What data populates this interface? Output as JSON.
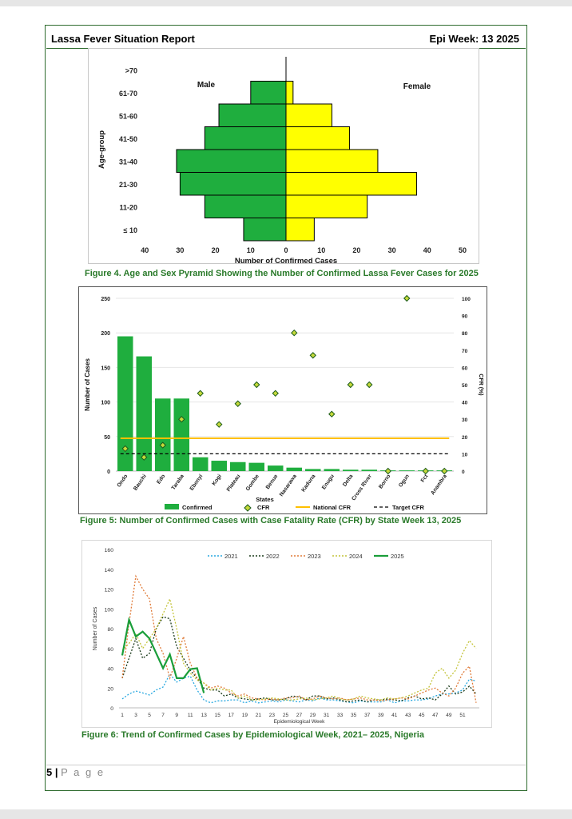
{
  "header": {
    "left": "Lassa Fever Situation Report",
    "right": "Epi Week: 13 2025"
  },
  "figure4": {
    "caption": "Figure 4. Age and Sex Pyramid Showing the Number of Confirmed Lassa Fever Cases for 2025",
    "chart_data": {
      "type": "bar",
      "orientation": "horizontal-pyramid",
      "ylabel": "Age-group",
      "xlabel": "Number of Confirmed Cases",
      "categories": [
        "≤ 10",
        "11-20",
        "21-30",
        "31-40",
        "41-50",
        "51-60",
        "61-70",
        ">70"
      ],
      "series": [
        {
          "name": "Male",
          "values": [
            12,
            23,
            30,
            31,
            23,
            19,
            10,
            0
          ]
        },
        {
          "name": "Female",
          "values": [
            8,
            23,
            37,
            26,
            18,
            13,
            2,
            0
          ]
        }
      ],
      "xticks": [
        "40",
        "30",
        "20",
        "10",
        "0",
        "10",
        "20",
        "30",
        "40",
        "50"
      ],
      "colors": {
        "male": "#1fae3e",
        "female": "#ffff00"
      }
    }
  },
  "figure5": {
    "caption": "Figure 5: Number of Confirmed Cases with Case Fatality Rate (CFR) by State Week 13, 2025",
    "chart_data": {
      "type": "bar",
      "categories": [
        "Ondo",
        "Bauchi",
        "Edo",
        "Taraba",
        "Ebonyi",
        "Kogi",
        "Plateau",
        "Gombe",
        "Benue",
        "Nasarawa",
        "Kaduna",
        "Enugu",
        "Delta",
        "Cross River",
        "Borno",
        "Ogun",
        "Fct",
        "Anambra"
      ],
      "series": [
        {
          "name": "Confirmed",
          "values": [
            195,
            166,
            105,
            105,
            20,
            15,
            13,
            12,
            8,
            5,
            3,
            3,
            2,
            2,
            1,
            1,
            1,
            1
          ]
        },
        {
          "name": "CFR",
          "values": [
            13,
            8,
            15,
            30,
            45,
            27,
            39,
            50,
            45,
            80,
            67,
            33,
            50,
            50,
            0,
            100,
            0,
            0
          ]
        }
      ],
      "national_cfr": 19,
      "target_cfr": 10,
      "ylabel": "Number of Cases",
      "y2label": "CFR (%)",
      "xlabel": "States",
      "ylim": [
        0,
        250
      ],
      "y2lim": [
        0,
        100
      ],
      "yticks": [
        "0",
        "50",
        "100",
        "150",
        "200",
        "250"
      ],
      "y2ticks": [
        "0",
        "10",
        "20",
        "30",
        "40",
        "50",
        "60",
        "70",
        "80",
        "90",
        "100"
      ],
      "legend": [
        "Confirmed",
        "CFR",
        "National CFR",
        "Target CFR"
      ],
      "colors": {
        "bar": "#1fae3e",
        "national": "#ffc000",
        "target": "#000000"
      }
    }
  },
  "figure6": {
    "caption": "Figure 6: Trend of Confirmed Cases by Epidemiological Week, 2021– 2025, Nigeria",
    "chart_data": {
      "type": "line",
      "ylabel": "Number of Cases",
      "xlabel": "Epidemiological Week",
      "ylim": [
        0,
        160
      ],
      "yticks": [
        "0",
        "20",
        "40",
        "60",
        "80",
        "100",
        "120",
        "140",
        "160"
      ],
      "xticks": [
        "1",
        "3",
        "5",
        "7",
        "9",
        "11",
        "13",
        "15",
        "17",
        "19",
        "21",
        "23",
        "25",
        "27",
        "29",
        "31",
        "33",
        "35",
        "37",
        "39",
        "41",
        "43",
        "45",
        "47",
        "49",
        "51"
      ],
      "series": [
        {
          "name": "2021",
          "color": "#29a8e0",
          "dash": "2,2",
          "values": [
            9,
            14,
            17,
            15,
            13,
            18,
            21,
            34,
            26,
            30,
            32,
            18,
            8,
            5,
            7,
            7,
            8,
            8,
            5,
            7,
            5,
            6,
            7,
            6,
            8,
            7,
            6,
            8,
            7,
            10,
            8,
            8,
            7,
            6,
            5,
            7,
            6,
            6,
            6,
            8,
            5,
            7,
            7,
            8,
            8,
            9,
            12,
            14,
            14,
            15,
            18,
            29,
            27
          ]
        },
        {
          "name": "2022",
          "color": "#1a3a1a",
          "dash": "2,2",
          "values": [
            30,
            50,
            70,
            50,
            55,
            80,
            92,
            90,
            62,
            50,
            38,
            30,
            20,
            18,
            18,
            12,
            14,
            10,
            9,
            8,
            9,
            10,
            8,
            8,
            9,
            12,
            11,
            8,
            12,
            12,
            9,
            10,
            8,
            6,
            7,
            8,
            6,
            8,
            8,
            9,
            8,
            7,
            10,
            12,
            9,
            10,
            8,
            14,
            22,
            14,
            16,
            22,
            14
          ]
        },
        {
          "name": "2023",
          "color": "#e07b39",
          "dash": "2,2",
          "values": [
            30,
            85,
            133,
            120,
            110,
            70,
            55,
            30,
            50,
            72,
            45,
            30,
            25,
            20,
            22,
            20,
            15,
            12,
            14,
            10,
            9,
            8,
            9,
            8,
            10,
            10,
            12,
            8,
            9,
            12,
            10,
            9,
            10,
            8,
            9,
            10,
            8,
            8,
            7,
            8,
            9,
            10,
            9,
            12,
            15,
            18,
            20,
            15,
            12,
            20,
            35,
            42,
            5
          ]
        },
        {
          "name": "2024",
          "color": "#c4c43a",
          "dash": "2,2",
          "values": [
            58,
            65,
            75,
            60,
            70,
            80,
            95,
            110,
            80,
            45,
            35,
            28,
            25,
            18,
            20,
            18,
            18,
            10,
            12,
            8,
            8,
            9,
            10,
            9,
            8,
            8,
            9,
            10,
            8,
            9,
            10,
            12,
            9,
            8,
            9,
            12,
            10,
            9,
            8,
            10,
            9,
            10,
            12,
            15,
            18,
            20,
            35,
            40,
            30,
            38,
            55,
            68,
            60
          ]
        },
        {
          "name": "2025",
          "color": "#1a9e3a",
          "dash": "",
          "values": [
            53,
            89,
            72,
            77,
            70,
            55,
            40,
            54,
            30,
            30,
            39,
            40,
            15
          ]
        }
      ]
    }
  },
  "footer": {
    "page_num": "5",
    "page_label": "P a g e"
  }
}
